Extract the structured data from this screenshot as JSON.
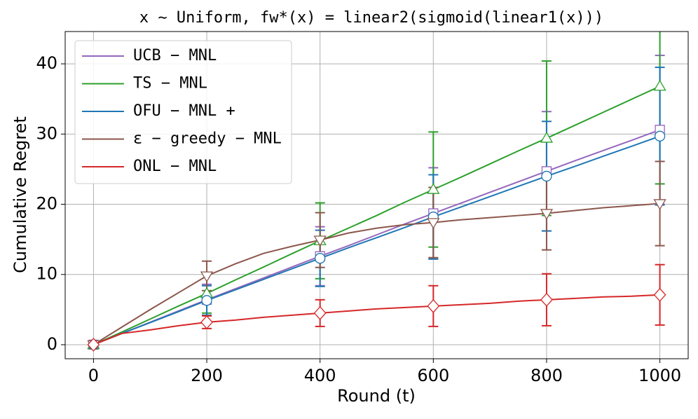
{
  "chart_data": {
    "type": "line",
    "title": "x ∼ Uniform, fw*(x) = linear2(sigmoid(linear1(x)))",
    "x_label": "Round (t)",
    "y_label": "Cumulative Regret",
    "x": [
      0,
      50,
      100,
      150,
      200,
      250,
      300,
      350,
      400,
      450,
      500,
      550,
      600,
      650,
      700,
      750,
      800,
      850,
      900,
      950,
      1000
    ],
    "xlim": [
      -50,
      1050
    ],
    "ylim": [
      -2,
      44.6
    ],
    "xticks": [
      0,
      200,
      400,
      600,
      800,
      1000
    ],
    "yticks": [
      0,
      10,
      20,
      30,
      40
    ],
    "grid": true,
    "legend": "upper left",
    "series": [
      {
        "name": "UCB − MNL",
        "color": "#9467bd",
        "marker": "square",
        "values": [
          0,
          1.6,
          3.2,
          4.8,
          6.4,
          7.95,
          9.5,
          11.05,
          12.6,
          14.1,
          15.65,
          17.2,
          18.7,
          20.2,
          21.7,
          23.2,
          24.7,
          26.2,
          27.65,
          29.1,
          30.6
        ],
        "errors": [
          0,
          null,
          null,
          null,
          2.2,
          null,
          null,
          null,
          4.2,
          null,
          null,
          null,
          6.5,
          null,
          null,
          null,
          8.5,
          null,
          null,
          null,
          10.6
        ]
      },
      {
        "name": "TS − MNL",
        "color": "#2ca02c",
        "marker": "triangle-up",
        "values": [
          0,
          1.8,
          3.65,
          5.5,
          7.3,
          9.2,
          11.05,
          12.95,
          14.8,
          16.6,
          18.4,
          20.3,
          22.1,
          23.9,
          25.75,
          27.6,
          29.4,
          31.25,
          33.1,
          34.95,
          36.8
        ],
        "errors": [
          0,
          null,
          null,
          null,
          2.8,
          null,
          null,
          null,
          5.4,
          null,
          null,
          null,
          8.2,
          null,
          null,
          null,
          11,
          null,
          null,
          null,
          13.9
        ]
      },
      {
        "name": "OFU − MNL +",
        "color": "#1f77b4",
        "marker": "circle",
        "values": [
          0,
          1.6,
          3.15,
          4.7,
          6.3,
          7.8,
          9.3,
          10.8,
          12.3,
          13.8,
          15.25,
          16.7,
          18.2,
          19.65,
          21.1,
          22.55,
          24.0,
          25.4,
          26.85,
          28.25,
          29.7
        ],
        "errors": [
          0,
          null,
          null,
          null,
          2.1,
          null,
          null,
          null,
          4,
          null,
          null,
          null,
          6,
          null,
          null,
          null,
          7.8,
          null,
          null,
          null,
          9.8
        ]
      },
      {
        "name": "ε − greedy − MNL",
        "color": "#8c564b",
        "marker": "triangle-down",
        "values": [
          0,
          2.5,
          5,
          7.4,
          9.8,
          11.5,
          13,
          14,
          14.9,
          15.9,
          16.6,
          17.1,
          17.4,
          17.8,
          18.1,
          18.4,
          18.7,
          19.1,
          19.5,
          19.8,
          20.1
        ],
        "errors": [
          0,
          null,
          null,
          null,
          2.1,
          null,
          null,
          null,
          3.9,
          null,
          null,
          null,
          5,
          null,
          null,
          null,
          5.2,
          null,
          null,
          null,
          6
        ]
      },
      {
        "name": "ONL − MNL",
        "color": "#d62728",
        "marker": "diamond",
        "values": [
          0,
          1.6,
          2.1,
          2.7,
          3.2,
          3.5,
          3.9,
          4.2,
          4.5,
          4.8,
          5.1,
          5.3,
          5.5,
          5.7,
          5.9,
          6.2,
          6.4,
          6.6,
          6.8,
          6.9,
          7.1
        ],
        "errors": [
          0,
          null,
          null,
          null,
          0.9,
          null,
          null,
          null,
          1.9,
          null,
          null,
          null,
          2.9,
          null,
          null,
          null,
          3.7,
          null,
          null,
          null,
          4.3
        ]
      }
    ]
  }
}
